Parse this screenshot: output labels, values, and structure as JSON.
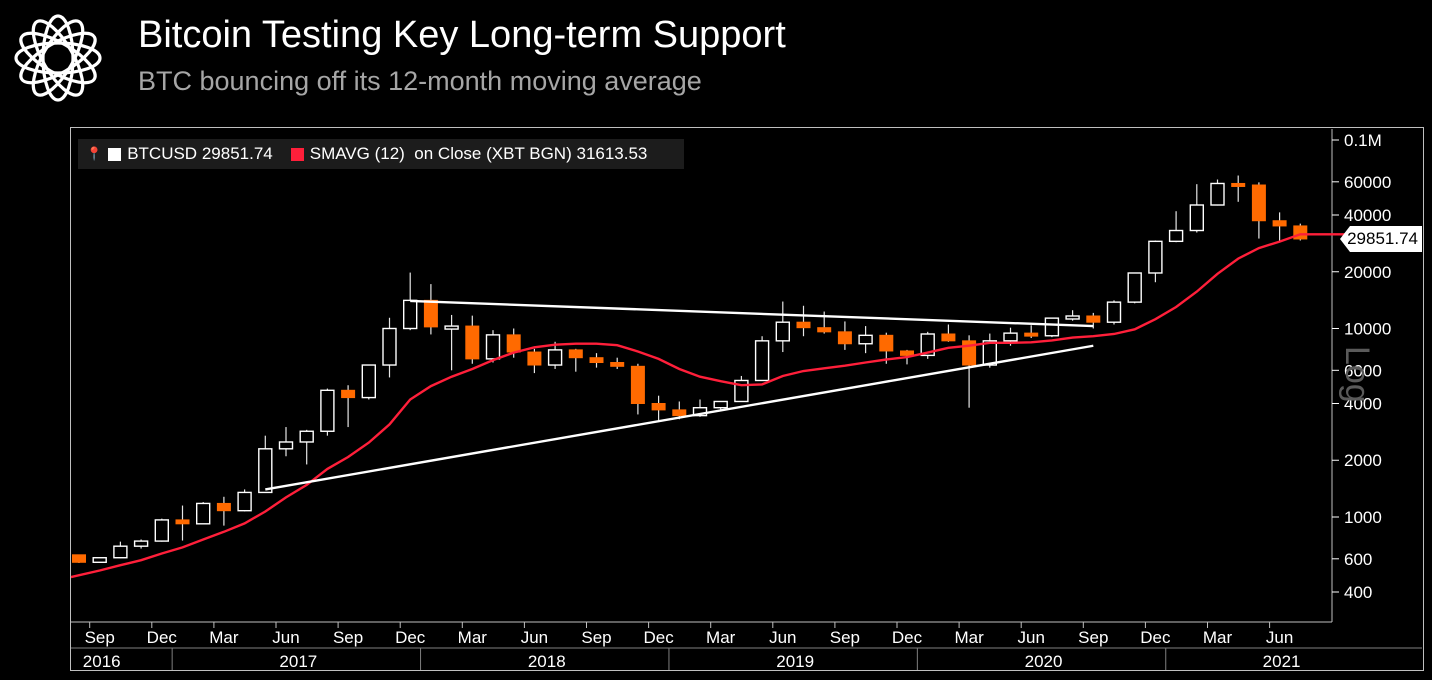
{
  "header": {
    "title": "Bitcoin Testing Key Long-term Support",
    "subtitle": "BTC bouncing off its 12-month moving average"
  },
  "colors": {
    "background": "#000000",
    "candle_up": "#ffffff",
    "candle_down": "#ff6a00",
    "sma_line": "#ff1f3a",
    "trendline": "#ffffff",
    "axis_text": "#ffffff",
    "subtitle": "#a6a6a6"
  },
  "icons": {
    "logo": "flower-logo-icon",
    "legend_marker": "pin-icon"
  },
  "legend": {
    "series1_name": "BTCUSD",
    "series1_value": "29851.74",
    "series2_name": "SMAVG (12)",
    "series2_desc": "on Close (XBT BGN)",
    "series2_value": "31613.53"
  },
  "last_price_tag": "29851.74",
  "y_scale_label": "Log",
  "chart_data": {
    "type": "candlestick",
    "title": "Bitcoin Testing Key Long-term Support",
    "subtitle": "BTC bouncing off its 12-month moving average",
    "y_scale": "log",
    "ylim": [
      300,
      110000
    ],
    "y_ticks": [
      {
        "value": 100000,
        "label": "0.1M"
      },
      {
        "value": 60000,
        "label": "60000"
      },
      {
        "value": 40000,
        "label": "40000"
      },
      {
        "value": 20000,
        "label": "20000"
      },
      {
        "value": 10000,
        "label": "10000"
      },
      {
        "value": 6000,
        "label": "6000"
      },
      {
        "value": 4000,
        "label": "4000"
      },
      {
        "value": 2000,
        "label": "2000"
      },
      {
        "value": 1000,
        "label": "1000"
      },
      {
        "value": 600,
        "label": "600"
      },
      {
        "value": 400,
        "label": "400"
      }
    ],
    "x_month_ticks": [
      "Sep",
      "Dec",
      "Mar",
      "Jun",
      "Sep",
      "Dec",
      "Mar",
      "Jun",
      "Sep",
      "Dec",
      "Mar",
      "Jun",
      "Sep",
      "Dec",
      "Mar",
      "Jun",
      "Sep",
      "Dec",
      "Mar",
      "Jun"
    ],
    "x_year_labels": [
      "2016",
      "2017",
      "2018",
      "2019",
      "2020",
      "2021"
    ],
    "months": [
      "2016-08",
      "2016-09",
      "2016-10",
      "2016-11",
      "2016-12",
      "2017-01",
      "2017-02",
      "2017-03",
      "2017-04",
      "2017-05",
      "2017-06",
      "2017-07",
      "2017-08",
      "2017-09",
      "2017-10",
      "2017-11",
      "2017-12",
      "2018-01",
      "2018-02",
      "2018-03",
      "2018-04",
      "2018-05",
      "2018-06",
      "2018-07",
      "2018-08",
      "2018-09",
      "2018-10",
      "2018-11",
      "2018-12",
      "2019-01",
      "2019-02",
      "2019-03",
      "2019-04",
      "2019-05",
      "2019-06",
      "2019-07",
      "2019-08",
      "2019-09",
      "2019-10",
      "2019-11",
      "2019-12",
      "2020-01",
      "2020-02",
      "2020-03",
      "2020-04",
      "2020-05",
      "2020-06",
      "2020-07",
      "2020-08",
      "2020-09",
      "2020-10",
      "2020-11",
      "2020-12",
      "2021-01",
      "2021-02",
      "2021-03",
      "2021-04",
      "2021-05",
      "2021-06",
      "2021-07"
    ],
    "series": [
      {
        "name": "BTCUSD",
        "ohlc": [
          [
            630,
            630,
            570,
            575
          ],
          [
            575,
            610,
            570,
            608
          ],
          [
            608,
            740,
            605,
            700
          ],
          [
            700,
            760,
            680,
            745
          ],
          [
            745,
            980,
            740,
            965
          ],
          [
            965,
            1150,
            750,
            920
          ],
          [
            920,
            1200,
            920,
            1180
          ],
          [
            1180,
            1280,
            900,
            1080
          ],
          [
            1080,
            1400,
            1070,
            1350
          ],
          [
            1350,
            2700,
            1350,
            2300
          ],
          [
            2300,
            3000,
            2100,
            2500
          ],
          [
            2500,
            2900,
            1900,
            2850
          ],
          [
            2850,
            4800,
            2700,
            4700
          ],
          [
            4700,
            5000,
            3000,
            4300
          ],
          [
            4300,
            6400,
            4200,
            6400
          ],
          [
            6400,
            11400,
            5500,
            10000
          ],
          [
            10000,
            19800,
            9800,
            14100
          ],
          [
            14100,
            17200,
            9300,
            10200
          ],
          [
            10200,
            11800,
            6000,
            10300
          ],
          [
            10300,
            11700,
            6500,
            6900
          ],
          [
            6900,
            9800,
            6600,
            9250
          ],
          [
            9250,
            10000,
            7000,
            7500
          ],
          [
            7500,
            7800,
            5800,
            6400
          ],
          [
            6400,
            8500,
            6100,
            7700
          ],
          [
            7700,
            7800,
            5900,
            7000
          ],
          [
            7000,
            7400,
            6200,
            6600
          ],
          [
            6600,
            7000,
            6100,
            6300
          ],
          [
            6300,
            6500,
            3500,
            4000
          ],
          [
            4000,
            4400,
            3200,
            3700
          ],
          [
            3700,
            4100,
            3300,
            3450
          ],
          [
            3450,
            4200,
            3400,
            3800
          ],
          [
            3800,
            4100,
            3700,
            4100
          ],
          [
            4100,
            5600,
            4100,
            5300
          ],
          [
            5300,
            9100,
            5300,
            8600
          ],
          [
            8600,
            13900,
            7500,
            10800
          ],
          [
            10800,
            13200,
            9100,
            10100
          ],
          [
            10100,
            12300,
            9400,
            9600
          ],
          [
            9600,
            10900,
            7700,
            8300
          ],
          [
            8300,
            10300,
            7400,
            9200
          ],
          [
            9200,
            9500,
            6500,
            7600
          ],
          [
            7600,
            7700,
            6450,
            7200
          ],
          [
            7200,
            9600,
            6900,
            9350
          ],
          [
            9350,
            10500,
            8500,
            8600
          ],
          [
            8600,
            9200,
            3800,
            6400
          ],
          [
            6400,
            9400,
            6200,
            8600
          ],
          [
            8600,
            10100,
            8100,
            9450
          ],
          [
            9450,
            10400,
            8900,
            9150
          ],
          [
            9150,
            11400,
            9000,
            11350
          ],
          [
            11350,
            12500,
            11000,
            11650
          ],
          [
            11650,
            12100,
            10000,
            10800
          ],
          [
            10800,
            14100,
            10500,
            13800
          ],
          [
            13800,
            19800,
            13600,
            19700
          ],
          [
            19700,
            29300,
            17600,
            29000
          ],
          [
            29000,
            41900,
            28700,
            33100
          ],
          [
            33100,
            58300,
            32300,
            45200
          ],
          [
            45200,
            61700,
            44900,
            58800
          ],
          [
            58800,
            64800,
            47000,
            57700
          ],
          [
            57700,
            59600,
            30000,
            37300
          ],
          [
            37300,
            41300,
            28900,
            35000
          ],
          [
            35000,
            36000,
            29300,
            29850
          ]
        ]
      },
      {
        "name": "SMAVG (12)",
        "values": [
          480,
          520,
          555,
          590,
          640,
          690,
          760,
          835,
          925,
          1070,
          1270,
          1480,
          1800,
          2080,
          2480,
          3100,
          4200,
          4950,
          5550,
          6100,
          6800,
          7450,
          7950,
          8200,
          8300,
          8300,
          8150,
          7550,
          6900,
          6100,
          5550,
          5250,
          5000,
          5050,
          5600,
          5950,
          6150,
          6350,
          6600,
          6850,
          7050,
          7450,
          7900,
          8100,
          8400,
          8400,
          8450,
          8650,
          8950,
          9100,
          9350,
          9900,
          11200,
          13000,
          15700,
          19500,
          23500,
          26700,
          28900,
          31600
        ]
      }
    ],
    "trendlines": [
      {
        "label": "upper",
        "from": [
          "2017-12",
          14000
        ],
        "to": [
          "2020-09",
          10300
        ]
      },
      {
        "label": "lower",
        "from": [
          "2017-05",
          1400
        ],
        "to": [
          "2020-09",
          8100
        ]
      }
    ],
    "last_value": 29851.74,
    "sma_last_value": 31613.53
  }
}
